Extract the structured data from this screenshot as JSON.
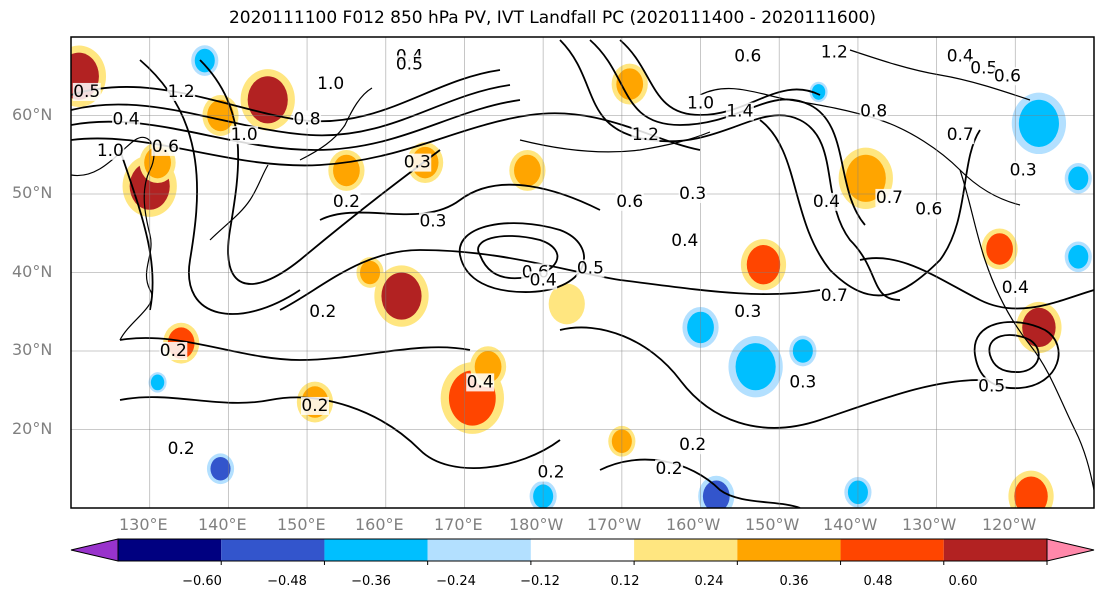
{
  "title": "2020111100 F012 850 hPa PV, IVT Landfall PC (2020111400 - 2020111600)",
  "map": {
    "lon_range_east_deg": [
      120,
      250
    ],
    "lat_range": [
      10,
      70
    ],
    "lat_labels": [
      "60°N",
      "50°N",
      "40°N",
      "30°N",
      "20°N"
    ],
    "lon_labels": [
      "130°E",
      "140°E",
      "150°E",
      "160°E",
      "170°E",
      "180°W",
      "170°W",
      "160°W",
      "150°W",
      "140°W",
      "130°W",
      "120°W"
    ],
    "contour_labels": [
      {
        "text": "0.4",
        "lon": 163,
        "lat": 67.5
      },
      {
        "text": "0.5",
        "lon": 163,
        "lat": 66.5
      },
      {
        "text": "0.6",
        "lon": 206,
        "lat": 67.5
      },
      {
        "text": "1.2",
        "lon": 217,
        "lat": 68
      },
      {
        "text": "0.4",
        "lon": 233,
        "lat": 67.5
      },
      {
        "text": "0.5",
        "lon": 236,
        "lat": 66
      },
      {
        "text": "0.6",
        "lon": 239,
        "lat": 65
      },
      {
        "text": "0.5",
        "lon": 122,
        "lat": 63
      },
      {
        "text": "1.2",
        "lon": 134,
        "lat": 63
      },
      {
        "text": "1.0",
        "lon": 153,
        "lat": 64
      },
      {
        "text": "0.4",
        "lon": 127,
        "lat": 59.5
      },
      {
        "text": "0.8",
        "lon": 150,
        "lat": 59.5
      },
      {
        "text": "1.0",
        "lon": 125,
        "lat": 55.5
      },
      {
        "text": "0.6",
        "lon": 132,
        "lat": 56
      },
      {
        "text": "1.0",
        "lon": 142,
        "lat": 57.5
      },
      {
        "text": "1.0",
        "lon": 200,
        "lat": 61.5
      },
      {
        "text": "1.4",
        "lon": 205,
        "lat": 60.5
      },
      {
        "text": "1.2",
        "lon": 193,
        "lat": 57.5
      },
      {
        "text": "0.8",
        "lon": 222,
        "lat": 60.5
      },
      {
        "text": "0.7",
        "lon": 233,
        "lat": 57.5
      },
      {
        "text": "0.3",
        "lon": 164,
        "lat": 54
      },
      {
        "text": "0.2",
        "lon": 155,
        "lat": 49
      },
      {
        "text": "0.3",
        "lon": 166,
        "lat": 46.5
      },
      {
        "text": "0.6",
        "lon": 191,
        "lat": 49
      },
      {
        "text": "0.3",
        "lon": 199,
        "lat": 50
      },
      {
        "text": "0.4",
        "lon": 216,
        "lat": 49
      },
      {
        "text": "0.7",
        "lon": 224,
        "lat": 49.5
      },
      {
        "text": "0.6",
        "lon": 229,
        "lat": 48
      },
      {
        "text": "0.3",
        "lon": 241,
        "lat": 53
      },
      {
        "text": "0.4",
        "lon": 198,
        "lat": 44
      },
      {
        "text": "0.6",
        "lon": 179,
        "lat": 40
      },
      {
        "text": "0.5",
        "lon": 186,
        "lat": 40.5
      },
      {
        "text": "0.4",
        "lon": 180,
        "lat": 39
      },
      {
        "text": "0.3",
        "lon": 206,
        "lat": 35
      },
      {
        "text": "0.7",
        "lon": 217,
        "lat": 37
      },
      {
        "text": "0.4",
        "lon": 240,
        "lat": 38
      },
      {
        "text": "0.2",
        "lon": 152,
        "lat": 35
      },
      {
        "text": "0.2",
        "lon": 133,
        "lat": 30
      },
      {
        "text": "0.4",
        "lon": 172,
        "lat": 26
      },
      {
        "text": "0.2",
        "lon": 151,
        "lat": 23
      },
      {
        "text": "0.5",
        "lon": 237,
        "lat": 25.5
      },
      {
        "text": "0.3",
        "lon": 213,
        "lat": 26
      },
      {
        "text": "0.2",
        "lon": 134,
        "lat": 17.5
      },
      {
        "text": "0.2",
        "lon": 199,
        "lat": 18
      },
      {
        "text": "0.2",
        "lon": 181,
        "lat": 14.5
      },
      {
        "text": "0.2",
        "lon": 196,
        "lat": 15
      }
    ],
    "shading": [
      {
        "lon": 121,
        "lat": 65,
        "r": 3,
        "level": 0.48
      },
      {
        "lon": 145,
        "lat": 62,
        "r": 3,
        "level": 0.48
      },
      {
        "lon": 139,
        "lat": 60,
        "r": 2,
        "level": 0.3
      },
      {
        "lon": 130,
        "lat": 51,
        "r": 3,
        "level": 0.48
      },
      {
        "lon": 131,
        "lat": 54,
        "r": 2,
        "level": 0.3
      },
      {
        "lon": 155,
        "lat": 53,
        "r": 2,
        "level": 0.3
      },
      {
        "lon": 165,
        "lat": 54,
        "r": 2,
        "level": 0.3
      },
      {
        "lon": 178,
        "lat": 53,
        "r": 2,
        "level": 0.3
      },
      {
        "lon": 162,
        "lat": 37,
        "r": 3,
        "level": 0.5
      },
      {
        "lon": 158,
        "lat": 40,
        "r": 1.5,
        "level": 0.3
      },
      {
        "lon": 134,
        "lat": 31,
        "r": 2,
        "level": 0.4
      },
      {
        "lon": 151,
        "lat": 23.5,
        "r": 2,
        "level": 0.3
      },
      {
        "lon": 171,
        "lat": 24,
        "r": 3.5,
        "level": 0.4
      },
      {
        "lon": 173,
        "lat": 28,
        "r": 2,
        "level": 0.3
      },
      {
        "lon": 208,
        "lat": 41,
        "r": 2.5,
        "level": 0.4
      },
      {
        "lon": 221,
        "lat": 52,
        "r": 3,
        "level": 0.3
      },
      {
        "lon": 191,
        "lat": 64,
        "r": 2,
        "level": 0.3
      },
      {
        "lon": 238,
        "lat": 43,
        "r": 2,
        "level": 0.4
      },
      {
        "lon": 243,
        "lat": 33,
        "r": 2.5,
        "level": 0.5
      },
      {
        "lon": 242,
        "lat": 11.5,
        "r": 2.5,
        "level": 0.4
      },
      {
        "lon": 190,
        "lat": 18.5,
        "r": 1.5,
        "level": 0.3
      },
      {
        "lon": 183,
        "lat": 36,
        "r": 2,
        "level": 0.2
      },
      {
        "lon": 200,
        "lat": 33,
        "r": 2,
        "level": -0.3
      },
      {
        "lon": 207,
        "lat": 28,
        "r": 3,
        "level": -0.3
      },
      {
        "lon": 213,
        "lat": 30,
        "r": 1.5,
        "level": -0.3
      },
      {
        "lon": 180,
        "lat": 11.5,
        "r": 1.5,
        "level": -0.3
      },
      {
        "lon": 202,
        "lat": 11.5,
        "r": 2,
        "level": -0.4
      },
      {
        "lon": 220,
        "lat": 12,
        "r": 1.5,
        "level": -0.3
      },
      {
        "lon": 243,
        "lat": 59,
        "r": 3,
        "level": -0.3
      },
      {
        "lon": 248,
        "lat": 52,
        "r": 1.5,
        "level": -0.3
      },
      {
        "lon": 248,
        "lat": 42,
        "r": 1.5,
        "level": -0.3
      },
      {
        "lon": 131,
        "lat": 26,
        "r": 1,
        "level": -0.3
      },
      {
        "lon": 139,
        "lat": 15,
        "r": 1.5,
        "level": -0.4
      },
      {
        "lon": 137,
        "lat": 67,
        "r": 1.5,
        "level": -0.3
      },
      {
        "lon": 215,
        "lat": 63,
        "r": 1,
        "level": -0.3
      }
    ]
  },
  "colorbar": {
    "colors": [
      "#9933cc",
      "#000080",
      "#3355cc",
      "#00bfff",
      "#b3e0ff",
      "#ffffff",
      "#ffe680",
      "#ffa500",
      "#ff4500",
      "#b22222",
      "#ff88aa"
    ],
    "tick_labels": [
      "−0.60",
      "−0.48",
      "−0.36",
      "−0.24",
      "−0.12",
      "0.12",
      "0.24",
      "0.36",
      "0.48",
      "0.60"
    ]
  }
}
